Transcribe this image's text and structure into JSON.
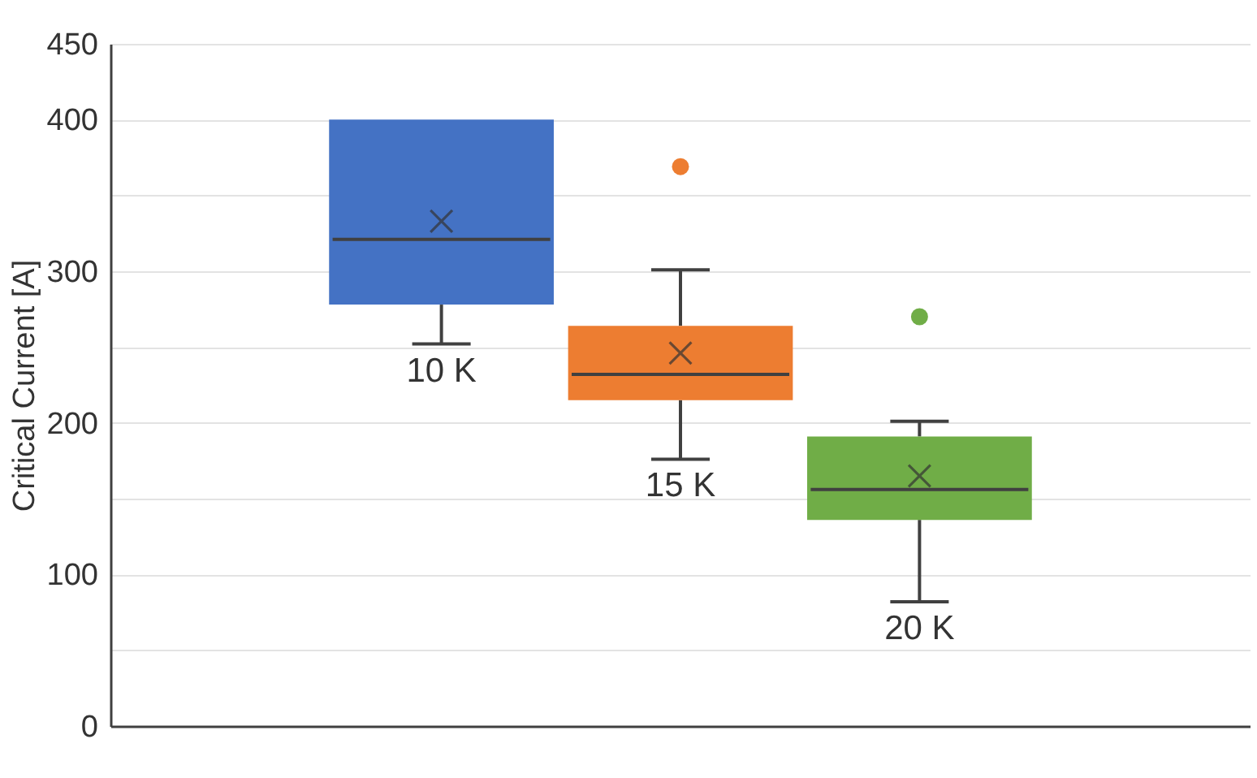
{
  "chart_data": {
    "type": "box",
    "ylabel": "Critical Current [A]",
    "categories": [
      null
    ],
    "series": [
      {
        "name": "10 K",
        "color": "#4472c4",
        "boxes": [
          {
            "low": 252,
            "q1": 278,
            "median": 321,
            "q3": 400,
            "high": 400,
            "mean": 333
          }
        ]
      },
      {
        "name": "15 K",
        "color": "#ed7d31",
        "boxes": [
          {
            "low": 176,
            "q1": 215,
            "median": 232,
            "q3": 264,
            "high": 301,
            "mean": 246,
            "outliers": [
              369
            ]
          }
        ]
      },
      {
        "name": "20 K",
        "color": "#70ad47",
        "boxes": [
          {
            "low": 82,
            "q1": 136,
            "median": 156,
            "q3": 191,
            "high": 201,
            "mean": 165,
            "outliers": [
              270
            ]
          }
        ]
      }
    ],
    "ylim": [
      0,
      450
    ],
    "yticks": [
      0,
      {
        "value": 50,
        "label": null
      },
      100,
      {
        "value": 150,
        "label": null
      },
      200,
      {
        "value": 250,
        "label": null
      },
      300,
      {
        "value": 350,
        "label": null
      },
      400,
      450
    ],
    "grid": "y",
    "tick_labels": "y",
    "marker": "cross"
  }
}
